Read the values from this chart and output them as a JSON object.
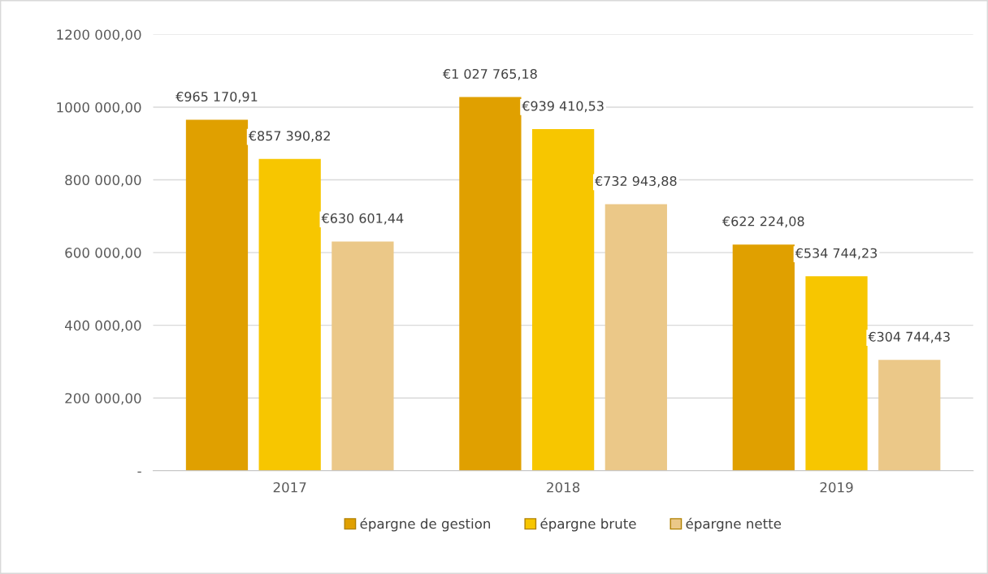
{
  "chart_data": {
    "type": "bar",
    "categories": [
      "2017",
      "2018",
      "2019"
    ],
    "series": [
      {
        "name": "épargne de gestion",
        "color": "#e0a000",
        "values": [
          965170.91,
          1027765.18,
          622224.08
        ],
        "value_labels": [
          "€965 170,91",
          "€1 027 765,18",
          "€622 224,08"
        ]
      },
      {
        "name": "épargne brute",
        "color": "#f7c600",
        "values": [
          857390.82,
          939410.53,
          534744.23
        ],
        "value_labels": [
          "€857 390,82",
          "€939 410,53",
          "€534 744,23"
        ]
      },
      {
        "name": "épargne nette",
        "color": "#ebc888",
        "values": [
          630601.44,
          732943.88,
          304744.43
        ],
        "value_labels": [
          "€630 601,44",
          "€732 943,88",
          "€304 744,43"
        ]
      }
    ],
    "ylim": [
      0,
      1200000
    ],
    "yticks": [
      {
        "value": 0,
        "label": "-"
      },
      {
        "value": 200000,
        "label": "200 000,00"
      },
      {
        "value": 400000,
        "label": "400 000,00"
      },
      {
        "value": 600000,
        "label": "600 000,00"
      },
      {
        "value": 800000,
        "label": "800 000,00"
      },
      {
        "value": 1000000,
        "label": "1000 000,00"
      },
      {
        "value": 1200000,
        "label": "1200 000,00"
      }
    ],
    "grid": "y",
    "legend": "bottom"
  }
}
